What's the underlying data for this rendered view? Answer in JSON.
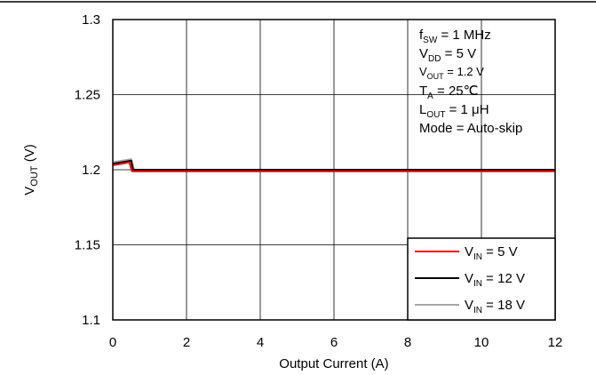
{
  "chart_data": {
    "type": "line",
    "title": "",
    "xlabel": "Output Current (A)",
    "ylabel_main": "V",
    "ylabel_sub": "OUT",
    "ylabel_tail": " (V)",
    "xlim": [
      0,
      12
    ],
    "ylim": [
      1.1,
      1.3
    ],
    "xticks": [
      0,
      2,
      4,
      6,
      8,
      10,
      12
    ],
    "xtick_labels": [
      "0",
      "2",
      "4",
      "6",
      "8",
      "10",
      "12"
    ],
    "yticks": [
      1.1,
      1.15,
      1.2,
      1.25,
      1.3
    ],
    "ytick_labels": [
      "1.1",
      "1.15",
      "1.2",
      "1.25",
      "1.3"
    ],
    "grid": true,
    "legend_position": "bottom-right",
    "series": [
      {
        "name_main": "V",
        "name_sub": "IN",
        "name_tail": " = 5 V",
        "color": "#ff0000",
        "x": [
          0,
          0.25,
          0.45,
          0.52,
          0.6,
          1,
          2,
          4,
          6,
          8,
          10,
          12
        ],
        "y": [
          1.203,
          1.204,
          1.205,
          1.199,
          1.199,
          1.199,
          1.199,
          1.199,
          1.199,
          1.199,
          1.199,
          1.199
        ]
      },
      {
        "name_main": "V",
        "name_sub": "IN",
        "name_tail": " = 12 V",
        "color": "#000000",
        "x": [
          0,
          0.25,
          0.5,
          0.55,
          0.6,
          1,
          2,
          4,
          6,
          8,
          10,
          12
        ],
        "y": [
          1.204,
          1.205,
          1.206,
          1.2,
          1.2,
          1.2,
          1.2,
          1.2,
          1.2,
          1.2,
          1.2,
          1.2
        ]
      },
      {
        "name_main": "V",
        "name_sub": "IN",
        "name_tail": " = 18 V",
        "color": "#a6a6a6",
        "x": [
          0,
          0.25,
          0.5,
          0.58,
          0.65,
          1,
          2,
          4,
          6,
          8,
          10,
          12
        ],
        "y": [
          1.205,
          1.206,
          1.207,
          1.2,
          1.2,
          1.2,
          1.2,
          1.2,
          1.2,
          1.2,
          1.2,
          1.2
        ]
      }
    ],
    "annotations": [
      {
        "main": "f",
        "sub": "SW",
        "tail": " = 1 MHz",
        "style": "normal"
      },
      {
        "main": "V",
        "sub": "DD",
        "tail": " = 5 V",
        "style": "normal"
      },
      {
        "main": "V",
        "sub": "OUT",
        "tail": " = 1.2 V",
        "style": "small"
      },
      {
        "main": "T",
        "sub": "A",
        "tail": " = 25℃",
        "style": "normal"
      },
      {
        "main": "L",
        "sub": "OUT",
        "tail": " = 1 μH",
        "style": "normal"
      },
      {
        "main": "Mode = Auto-skip",
        "sub": "",
        "tail": "",
        "style": "normal"
      }
    ]
  }
}
